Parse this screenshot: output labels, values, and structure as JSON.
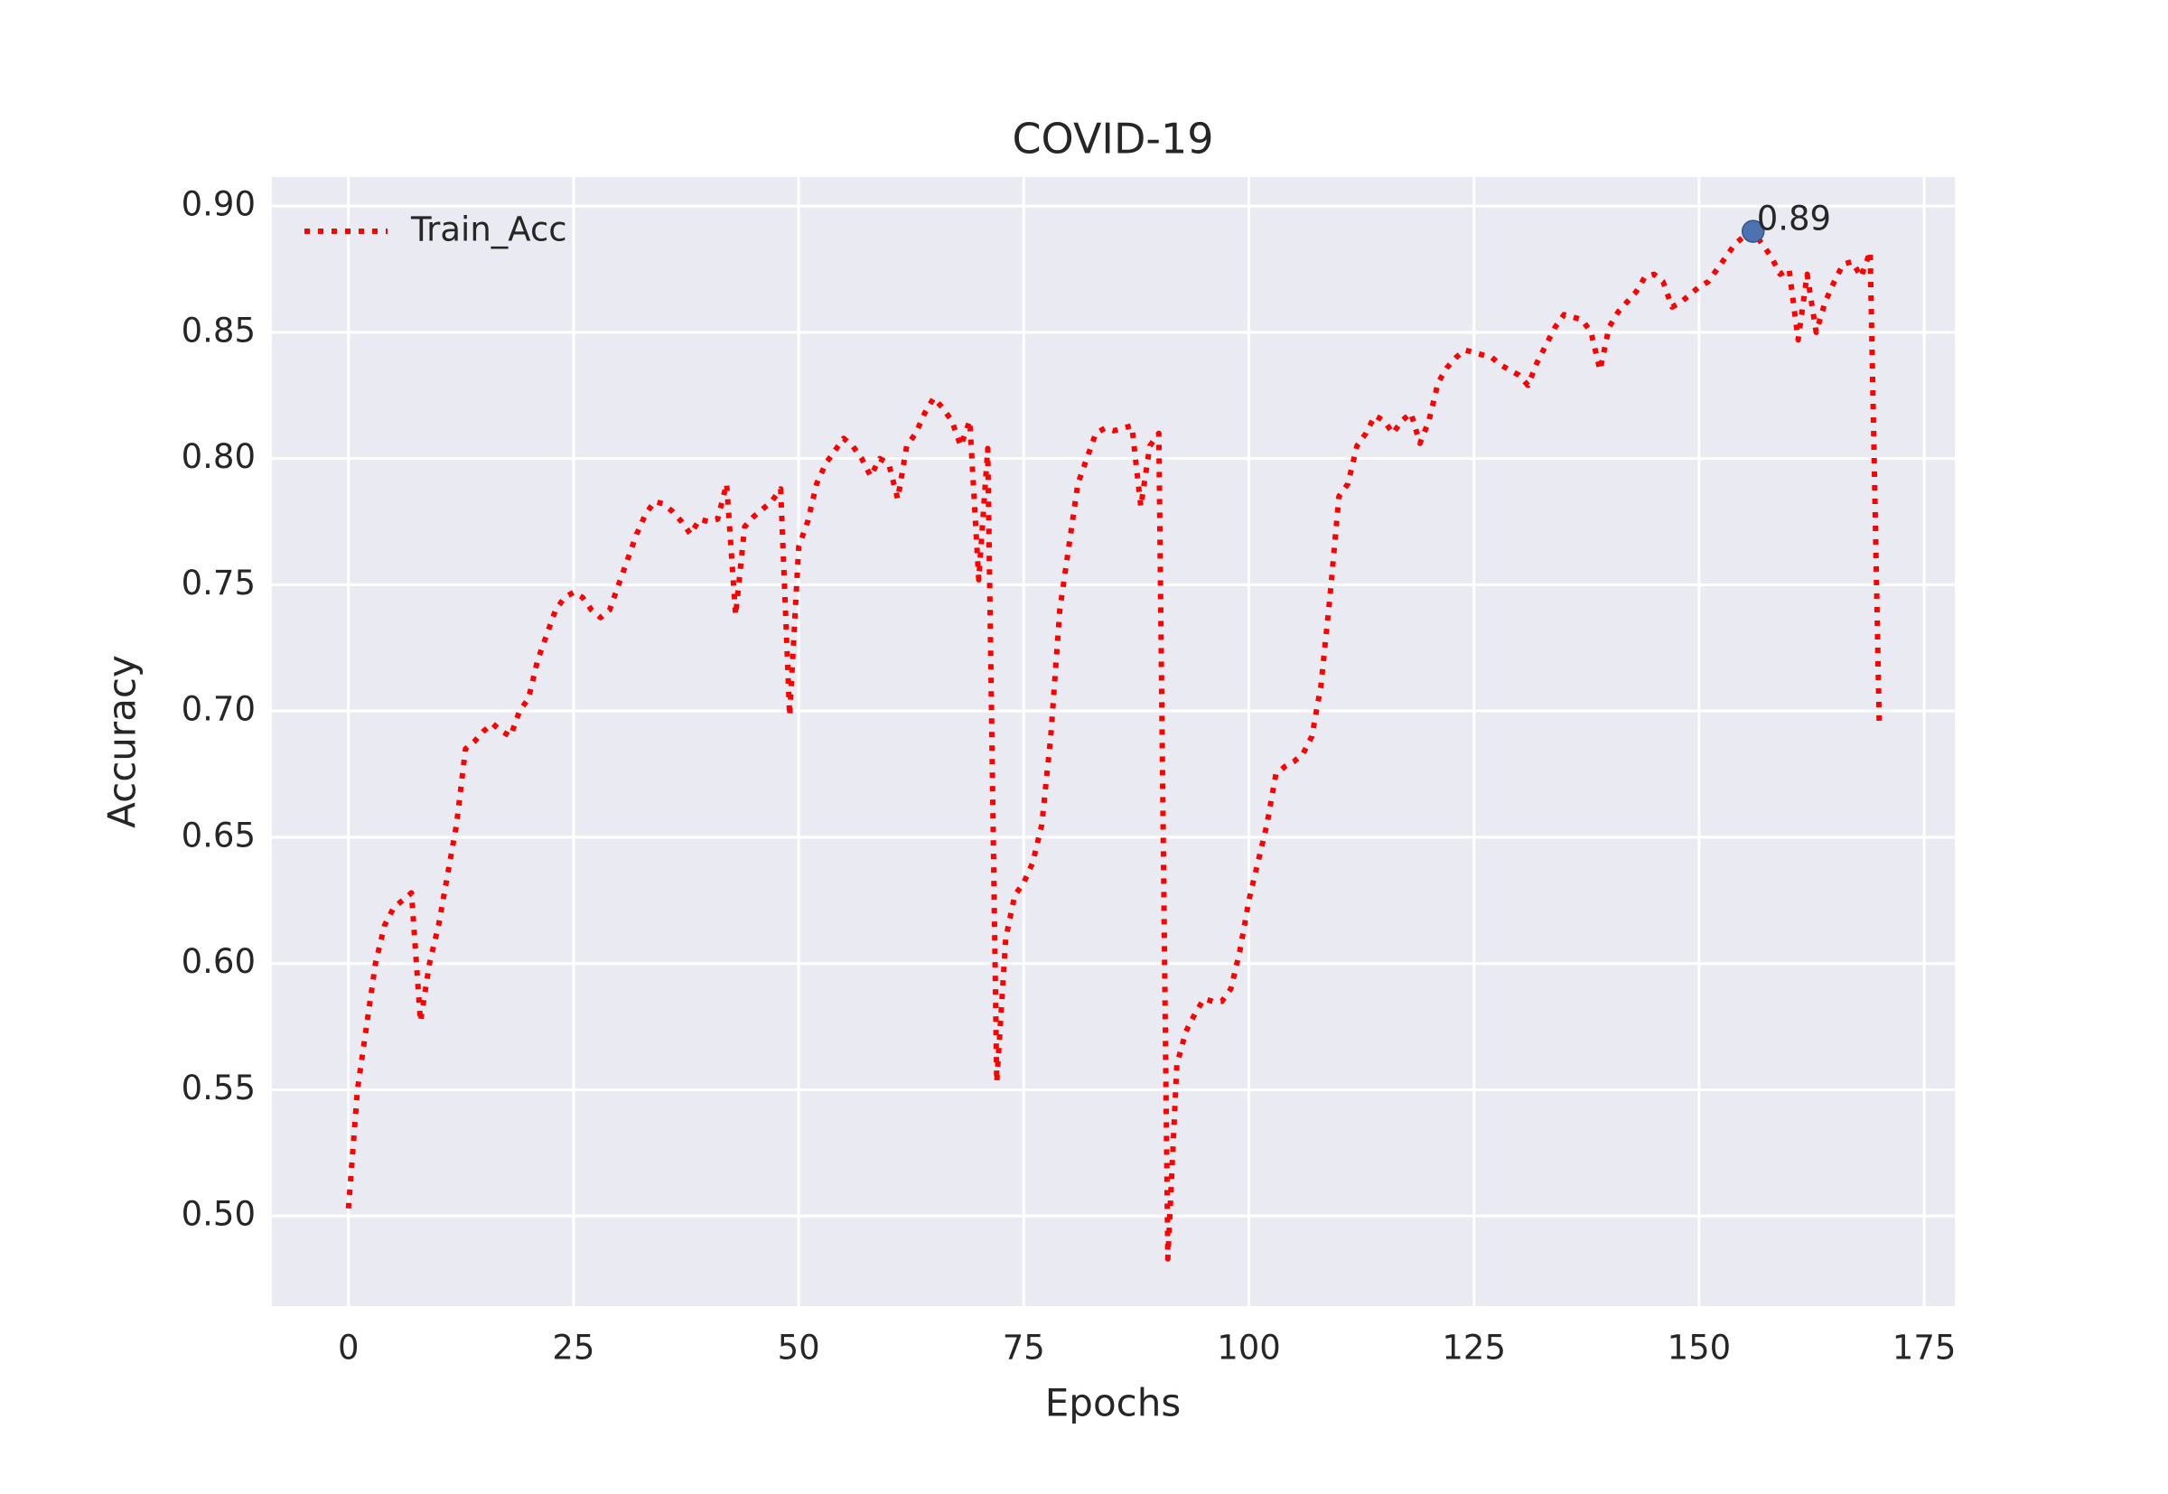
{
  "chart_data": {
    "type": "line",
    "title": "COVID-19",
    "x_label": "Epochs",
    "y_label": "Accuracy",
    "x": [
      0,
      1,
      2,
      3,
      4,
      5,
      6,
      7,
      8,
      9,
      10,
      11,
      12,
      13,
      14,
      15,
      16,
      17,
      18,
      19,
      20,
      21,
      22,
      23,
      24,
      25,
      26,
      27,
      28,
      29,
      30,
      31,
      32,
      33,
      34,
      35,
      36,
      37,
      38,
      39,
      40,
      41,
      42,
      43,
      44,
      45,
      46,
      47,
      48,
      49,
      50,
      51,
      52,
      53,
      54,
      55,
      56,
      57,
      58,
      59,
      60,
      61,
      62,
      63,
      64,
      65,
      66,
      67,
      68,
      69,
      70,
      71,
      72,
      73,
      74,
      75,
      76,
      77,
      78,
      79,
      80,
      81,
      82,
      83,
      84,
      85,
      86,
      87,
      88,
      89,
      90,
      91,
      92,
      93,
      94,
      95,
      96,
      97,
      98,
      99,
      100,
      101,
      102,
      103,
      104,
      105,
      106,
      107,
      108,
      109,
      110,
      111,
      112,
      113,
      114,
      115,
      116,
      117,
      118,
      119,
      120,
      121,
      122,
      123,
      124,
      125,
      126,
      127,
      128,
      129,
      130,
      131,
      132,
      133,
      134,
      135,
      136,
      137,
      138,
      139,
      140,
      141,
      142,
      143,
      144,
      145,
      146,
      147,
      148,
      149,
      150,
      151,
      152,
      153,
      154,
      155,
      156,
      157,
      158,
      159,
      160,
      161,
      162,
      163,
      164,
      165,
      166,
      167,
      168,
      169,
      170
    ],
    "series": [
      {
        "name": "Train_Acc",
        "color": "#ff0000",
        "values": [
          0.503,
          0.55,
          0.575,
          0.6,
          0.615,
          0.622,
          0.625,
          0.628,
          0.577,
          0.6,
          0.615,
          0.635,
          0.655,
          0.685,
          0.688,
          0.692,
          0.695,
          0.692,
          0.69,
          0.7,
          0.705,
          0.72,
          0.73,
          0.74,
          0.745,
          0.747,
          0.745,
          0.74,
          0.737,
          0.74,
          0.75,
          0.76,
          0.77,
          0.778,
          0.783,
          0.782,
          0.779,
          0.775,
          0.77,
          0.776,
          0.775,
          0.776,
          0.79,
          0.738,
          0.773,
          0.777,
          0.78,
          0.783,
          0.788,
          0.698,
          0.765,
          0.775,
          0.79,
          0.798,
          0.803,
          0.808,
          0.805,
          0.8,
          0.793,
          0.8,
          0.798,
          0.784,
          0.805,
          0.81,
          0.818,
          0.824,
          0.82,
          0.815,
          0.805,
          0.815,
          0.752,
          0.804,
          0.553,
          0.61,
          0.627,
          0.632,
          0.64,
          0.655,
          0.69,
          0.74,
          0.765,
          0.79,
          0.8,
          0.81,
          0.812,
          0.811,
          0.812,
          0.813,
          0.781,
          0.805,
          0.81,
          0.483,
          0.56,
          0.573,
          0.58,
          0.586,
          0.585,
          0.585,
          0.59,
          0.605,
          0.625,
          0.64,
          0.655,
          0.675,
          0.678,
          0.68,
          0.683,
          0.69,
          0.71,
          0.745,
          0.785,
          0.79,
          0.805,
          0.81,
          0.817,
          0.815,
          0.81,
          0.815,
          0.818,
          0.806,
          0.815,
          0.83,
          0.836,
          0.84,
          0.843,
          0.842,
          0.841,
          0.84,
          0.837,
          0.835,
          0.833,
          0.829,
          0.838,
          0.845,
          0.852,
          0.857,
          0.856,
          0.855,
          0.85,
          0.835,
          0.852,
          0.858,
          0.862,
          0.866,
          0.872,
          0.873,
          0.87,
          0.86,
          0.862,
          0.865,
          0.868,
          0.87,
          0.875,
          0.88,
          0.885,
          0.888,
          0.89,
          0.885,
          0.88,
          0.873,
          0.875,
          0.847,
          0.873,
          0.85,
          0.862,
          0.87,
          0.877,
          0.878,
          0.872,
          0.882,
          0.696
        ]
      }
    ],
    "best": {
      "x": 156,
      "value": 0.89,
      "color": "#4c72b0"
    },
    "xlim": [
      -8.5,
      178.4
    ],
    "ylim": [
      0.4643,
      0.9115
    ],
    "xticks": [
      0,
      25,
      50,
      75,
      100,
      125,
      150,
      175
    ],
    "yticks": [
      {
        "value": 0.5,
        "label": "0.50"
      },
      0.55,
      {
        "value": 0.6,
        "label": "0.60"
      },
      0.65,
      {
        "value": 0.7,
        "label": "0.70"
      },
      0.75,
      {
        "value": 0.8,
        "label": "0.80"
      },
      0.85,
      {
        "value": 0.9,
        "label": "0.90"
      }
    ],
    "grid": true,
    "legend": "upper left"
  }
}
